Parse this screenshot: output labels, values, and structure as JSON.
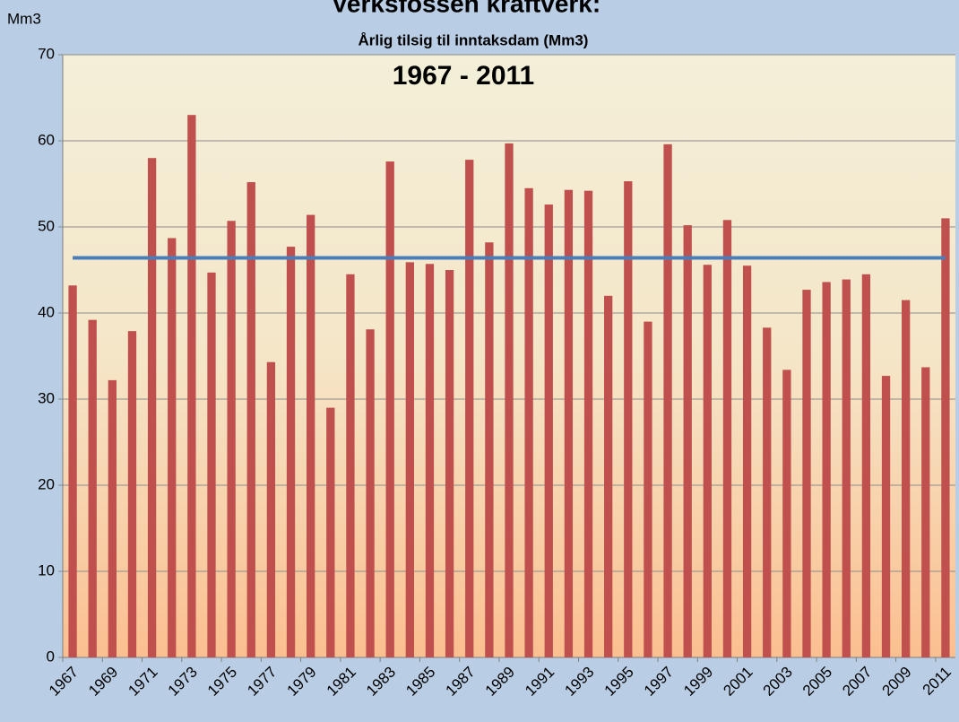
{
  "chart_data": {
    "type": "bar",
    "title": "Verksfossen kraftverk:",
    "subtitle": "Årlig tilsig til inntaksdam (Mm3)",
    "period": "1967 - 2011",
    "y_label": "Mm3",
    "categories": [
      "1967",
      null,
      "1969",
      null,
      "1971",
      null,
      "1973",
      null,
      "1975",
      null,
      "1977",
      null,
      "1979",
      null,
      "1981",
      null,
      "1983",
      null,
      "1985",
      null,
      "1987",
      null,
      "1989",
      null,
      "1991",
      null,
      "1993",
      null,
      "1995",
      null,
      "1997",
      null,
      "1999",
      null,
      "2001",
      null,
      "2003",
      null,
      "2005",
      null,
      "2007",
      null,
      "2009",
      null,
      "2011"
    ],
    "values": [
      43.2,
      39.2,
      32.2,
      37.9,
      58.0,
      48.7,
      63.0,
      44.7,
      50.7,
      55.2,
      34.3,
      47.7,
      51.4,
      29.0,
      44.5,
      38.1,
      57.6,
      45.9,
      45.7,
      45.0,
      57.8,
      48.2,
      59.7,
      54.5,
      52.6,
      54.3,
      54.2,
      42.0,
      55.3,
      39.0,
      59.6,
      50.2,
      45.6,
      50.8,
      45.5,
      38.3,
      33.4,
      42.7,
      43.6,
      43.9,
      44.5,
      32.7,
      41.5,
      33.7,
      51.0
    ],
    "color": "#c0504d",
    "reference_line": {
      "value": 46.4,
      "color": "#4a7ebb"
    },
    "ylim": [
      0,
      70
    ],
    "yticks": [
      0,
      10,
      20,
      30,
      40,
      50,
      60,
      70
    ],
    "grid": true
  }
}
